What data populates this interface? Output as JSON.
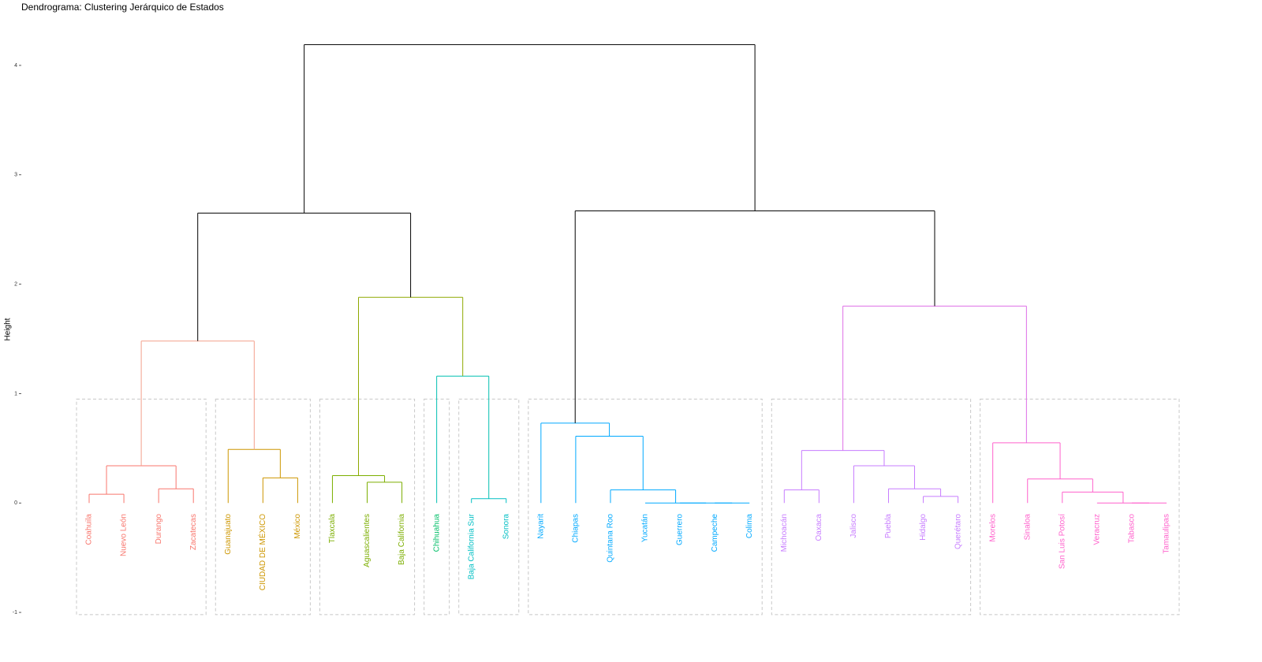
{
  "chart_data": {
    "type": "dendrogram",
    "title": "Dendrograma: Clustering Jerárquico de Estados",
    "ylabel": "Height",
    "ylim": [
      -1.05,
      4.45
    ],
    "yticks": [
      -1,
      0,
      1,
      2,
      3,
      4
    ],
    "tree": {
      "height": 4.19,
      "color": "#000000",
      "children": [
        {
          "height": 2.65,
          "color": "#000000",
          "children": [
            {
              "height": 1.48,
              "color": "#F4A08C",
              "children": [
                {
                  "height": 0.34,
                  "color": "#F8766D",
                  "children": [
                    {
                      "height": 0.08,
                      "color": "#F8766D",
                      "children": [
                        {
                          "label": "Coahuila",
                          "color": "#F8766D"
                        },
                        {
                          "label": "Nuevo León",
                          "color": "#F8766D"
                        }
                      ]
                    },
                    {
                      "height": 0.13,
                      "color": "#F8766D",
                      "children": [
                        {
                          "label": "Durango",
                          "color": "#F8766D"
                        },
                        {
                          "label": "Zacatecas",
                          "color": "#F8766D"
                        }
                      ]
                    }
                  ]
                },
                {
                  "height": 0.49,
                  "color": "#CD9600",
                  "children": [
                    {
                      "label": "Guanajuato",
                      "color": "#CD9600"
                    },
                    {
                      "height": 0.23,
                      "color": "#CD9600",
                      "children": [
                        {
                          "label": "CIUDAD DE MÉXICO",
                          "color": "#CD9600"
                        },
                        {
                          "label": "México",
                          "color": "#CD9600"
                        }
                      ]
                    }
                  ]
                }
              ]
            },
            {
              "height": 1.88,
              "color": "#8FA800",
              "children": [
                {
                  "height": 0.25,
                  "color": "#7CAE00",
                  "children": [
                    {
                      "label": "Tlaxcala",
                      "color": "#7CAE00"
                    },
                    {
                      "height": 0.19,
                      "color": "#7CAE00",
                      "children": [
                        {
                          "label": "Aguascalientes",
                          "color": "#7CAE00"
                        },
                        {
                          "label": "Baja California",
                          "color": "#7CAE00"
                        }
                      ]
                    }
                  ]
                },
                {
                  "height": 1.16,
                  "color": "#00BFB0",
                  "children": [
                    {
                      "label": "Chihuahua",
                      "color": "#00BE67"
                    },
                    {
                      "height": 0.04,
                      "color": "#00BFC4",
                      "children": [
                        {
                          "label": "Baja California Sur",
                          "color": "#00BFC4"
                        },
                        {
                          "label": "Sonora",
                          "color": "#00BFC4"
                        }
                      ]
                    }
                  ]
                }
              ]
            }
          ]
        },
        {
          "height": 2.67,
          "color": "#000000",
          "children": [
            {
              "height": 0.73,
              "color": "#00A9FF",
              "children": [
                {
                  "label": "Nayarit",
                  "color": "#00A9FF"
                },
                {
                  "height": 0.61,
                  "color": "#00A9FF",
                  "children": [
                    {
                      "label": "Chiapas",
                      "color": "#00A9FF"
                    },
                    {
                      "height": 0.12,
                      "color": "#00A9FF",
                      "children": [
                        {
                          "label": "Quintana Roo",
                          "color": "#00A9FF"
                        },
                        {
                          "height": 0,
                          "color": "#00A9FF",
                          "children": [
                            {
                              "label": "Yucatán",
                              "color": "#00A9FF"
                            },
                            {
                              "height": 0,
                              "color": "#00A9FF",
                              "children": [
                                {
                                  "label": "Guerrero",
                                  "color": "#00A9FF"
                                },
                                {
                                  "height": 0,
                                  "color": "#00A9FF",
                                  "children": [
                                    {
                                      "label": "Campeche",
                                      "color": "#00A9FF"
                                    },
                                    {
                                      "label": "Colima",
                                      "color": "#00A9FF"
                                    }
                                  ]
                                }
                              ]
                            }
                          ]
                        }
                      ]
                    }
                  ]
                }
              ]
            },
            {
              "height": 1.8,
              "color": "#DE6FE6",
              "children": [
                {
                  "height": 0.48,
                  "color": "#C77CFF",
                  "children": [
                    {
                      "height": 0.12,
                      "color": "#C77CFF",
                      "children": [
                        {
                          "label": "Michoacán",
                          "color": "#C77CFF"
                        },
                        {
                          "label": "Oaxaca",
                          "color": "#C77CFF"
                        }
                      ]
                    },
                    {
                      "height": 0.34,
                      "color": "#C77CFF",
                      "children": [
                        {
                          "label": "Jalisco",
                          "color": "#C77CFF"
                        },
                        {
                          "height": 0.13,
                          "color": "#C77CFF",
                          "children": [
                            {
                              "label": "Puebla",
                              "color": "#C77CFF"
                            },
                            {
                              "height": 0.06,
                              "color": "#C77CFF",
                              "children": [
                                {
                                  "label": "Hidalgo",
                                  "color": "#C77CFF"
                                },
                                {
                                  "label": "Querétaro",
                                  "color": "#C77CFF"
                                }
                              ]
                            }
                          ]
                        }
                      ]
                    }
                  ]
                },
                {
                  "height": 0.55,
                  "color": "#FF61CC",
                  "children": [
                    {
                      "label": "Morelos",
                      "color": "#FF61CC"
                    },
                    {
                      "height": 0.22,
                      "color": "#FF61CC",
                      "children": [
                        {
                          "label": "Sinaloa",
                          "color": "#FF61CC"
                        },
                        {
                          "height": 0.1,
                          "color": "#FF61CC",
                          "children": [
                            {
                              "label": "San Luis Potosí",
                              "color": "#FF61CC"
                            },
                            {
                              "height": 0,
                              "color": "#FF61CC",
                              "children": [
                                {
                                  "label": "Veracruz",
                                  "color": "#FF61CC"
                                },
                                {
                                  "height": 0,
                                  "color": "#FF61CC",
                                  "children": [
                                    {
                                      "label": "Tabasco",
                                      "color": "#FF61CC"
                                    },
                                    {
                                      "label": "Tamaulipas",
                                      "color": "#FF61CC"
                                    }
                                  ]
                                }
                              ]
                            }
                          ]
                        }
                      ]
                    }
                  ]
                }
              ]
            }
          ]
        }
      ]
    }
  }
}
